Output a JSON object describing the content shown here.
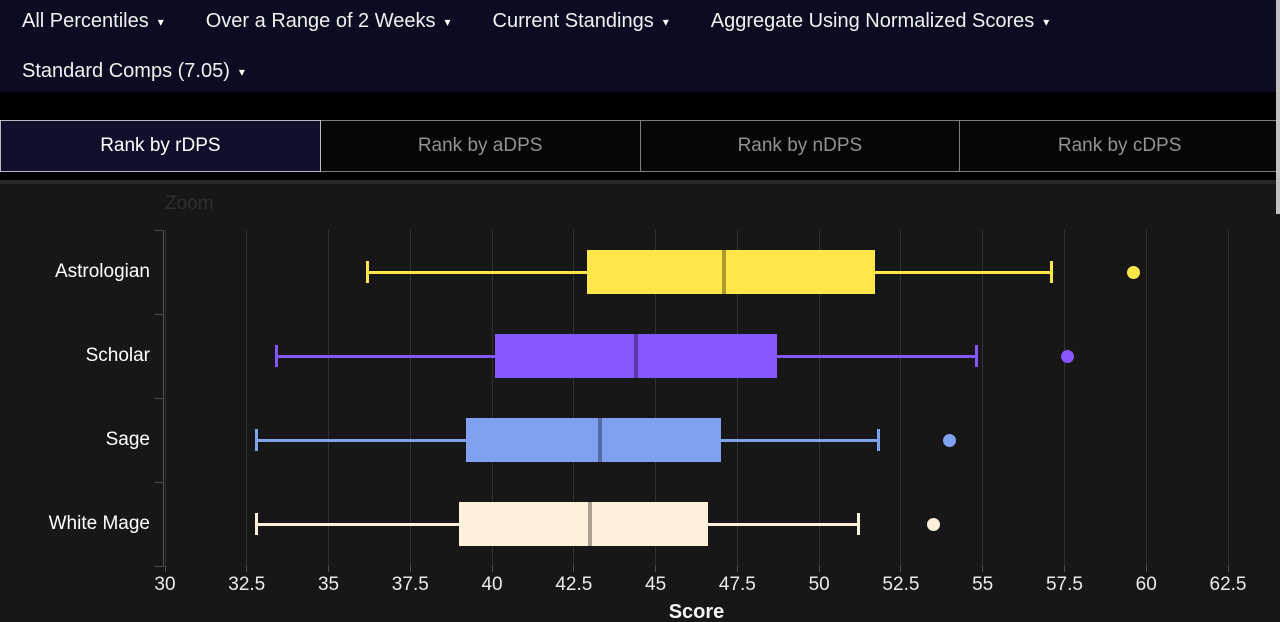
{
  "topbar": {
    "dropdowns": [
      {
        "label": "All Percentiles"
      },
      {
        "label": "Over a Range of 2 Weeks"
      },
      {
        "label": "Current Standings"
      },
      {
        "label": "Aggregate Using Normalized Scores"
      },
      {
        "label": "Standard Comps (7.05)"
      }
    ]
  },
  "tabs": [
    {
      "label": "Rank by rDPS",
      "active": true
    },
    {
      "label": "Rank by aDPS",
      "active": false
    },
    {
      "label": "Rank by nDPS",
      "active": false
    },
    {
      "label": "Rank by cDPS",
      "active": false
    }
  ],
  "chart_data": {
    "type": "boxplot",
    "orientation": "horizontal",
    "zoom_label": "Zoom",
    "xlabel": "Score",
    "xlim": [
      30,
      62.5
    ],
    "x_ticks": [
      30,
      32.5,
      35,
      37.5,
      40,
      42.5,
      45,
      47.5,
      50,
      52.5,
      55,
      57.5,
      60,
      62.5
    ],
    "grid": true,
    "categories": [
      "Astrologian",
      "Scholar",
      "Sage",
      "White Mage"
    ],
    "series": [
      {
        "name": "Astrologian",
        "color": "#ffe74a",
        "low": 36.2,
        "q1": 42.9,
        "median": 47.1,
        "q3": 51.7,
        "high": 57.1,
        "outliers": [
          59.6
        ]
      },
      {
        "name": "Scholar",
        "color": "#8657ff",
        "low": 33.4,
        "q1": 40.1,
        "median": 44.4,
        "q3": 48.7,
        "high": 54.8,
        "outliers": [
          57.6
        ]
      },
      {
        "name": "Sage",
        "color": "#80a0f0",
        "low": 32.8,
        "q1": 39.2,
        "median": 43.3,
        "q3": 47.0,
        "high": 51.8,
        "outliers": [
          54.0
        ]
      },
      {
        "name": "White Mage",
        "color": "#fff0dc",
        "low": 32.8,
        "q1": 39.0,
        "median": 43.0,
        "q3": 46.6,
        "high": 51.2,
        "outliers": [
          53.5
        ]
      }
    ]
  },
  "colors": {
    "topbar_bg": "#0b0b21",
    "active_tab_bg": "#10102c",
    "panel_bg": "#171717",
    "gridline": "#313131"
  }
}
